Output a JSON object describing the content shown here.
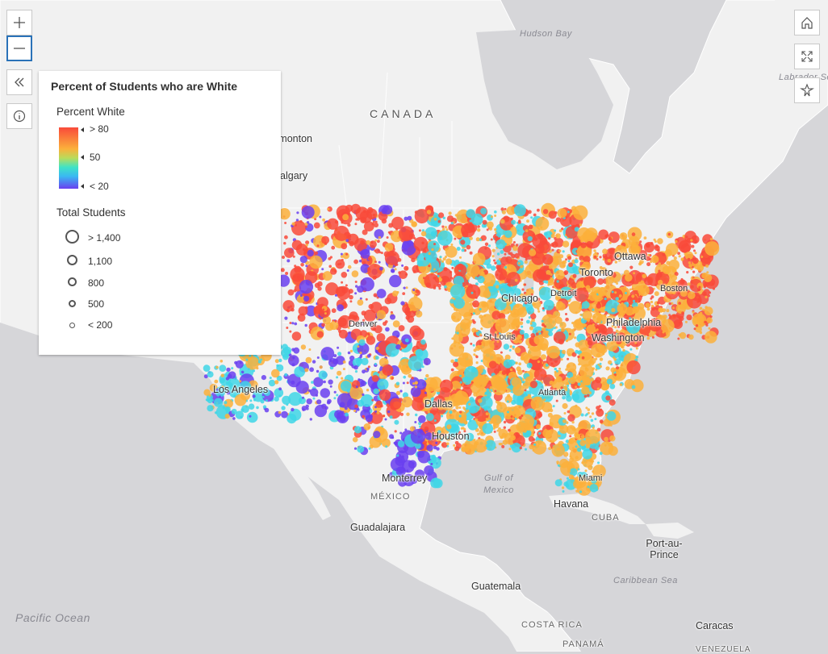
{
  "map": {
    "labels": {
      "hudson_bay": "Hudson Bay",
      "canada": "CANADA",
      "edmonton": "Edmonton",
      "calgary": "Calgary",
      "labrador_sea": "Labrador Sea",
      "ottawa": "Ottawa",
      "toronto": "Toronto",
      "boston": "Boston",
      "detroit": "Detroit",
      "chicago": "Chicago",
      "denver": "Denver",
      "st_louis": "St Louis",
      "philadelphia": "Philadelphia",
      "washington": "Washington",
      "los_angeles": "Los Angeles",
      "atlanta": "Atlanta",
      "dallas": "Dallas",
      "houston": "Houston",
      "monterrey": "Monterrey",
      "mexico": "MÉXICO",
      "gulf_of_mexico": "Gulf of Mexico",
      "miami": "Miami",
      "havana": "Havana",
      "cuba": "CUBA",
      "guadalajara": "Guadalajara",
      "port_au_prince": "Port-au-Prince",
      "caribbean_sea": "Caribbean Sea",
      "guatemala": "Guatemala",
      "costa_rica": "COSTA RICA",
      "panama": "PANAMÁ",
      "caracas": "Caracas",
      "venezuela": "VENEZUELA",
      "pacific_ocean": "Pacific Ocean"
    }
  },
  "controls": {
    "zoom_in_icon": "plus-icon",
    "zoom_out_icon": "minus-icon",
    "collapse_icon": "double-chevron-left-icon",
    "info_icon": "info-icon",
    "home_icon": "home-icon",
    "fullscreen_icon": "expand-icon",
    "locate_icon": "navigation-icon"
  },
  "legend": {
    "title": "Percent of Students who are White",
    "color_section": {
      "title": "Percent White",
      "high": "> 80",
      "mid": "50",
      "low": "< 20",
      "ramp_colors": [
        "#f94a3a",
        "#fbb03b",
        "#b9dc5b",
        "#3fe3c6",
        "#3ab8f2",
        "#6a3ff0"
      ]
    },
    "size_section": {
      "title": "Total Students",
      "items": [
        "> 1,400",
        "1,100",
        "800",
        "500",
        "< 200"
      ]
    }
  },
  "colors": {
    "red": "#f94a3a",
    "orange": "#fbb03b",
    "cyan": "#3fd6e6",
    "blue": "#6a3ff0",
    "land": "#f2f2f2",
    "water": "#d6d6d9",
    "accent": "#2a72b8"
  }
}
